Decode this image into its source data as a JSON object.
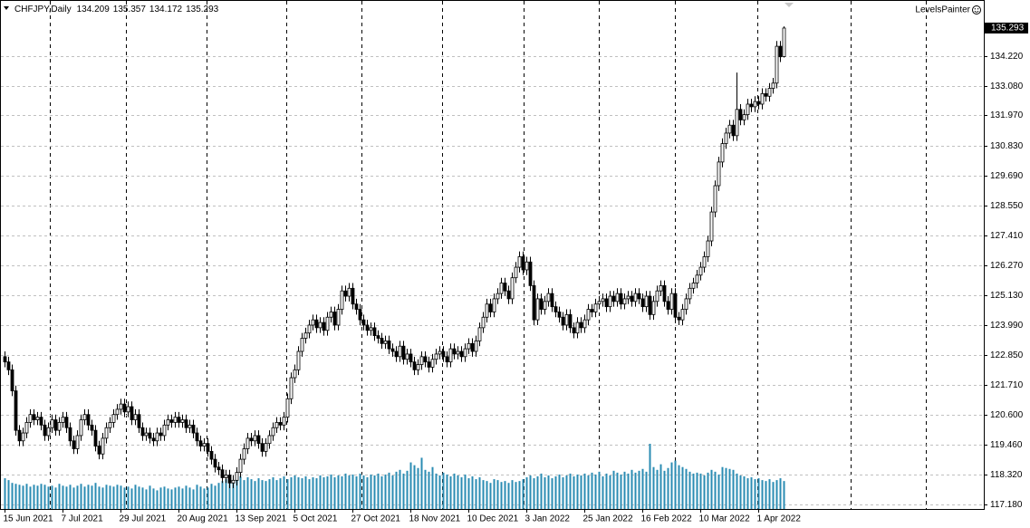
{
  "chart_data": {
    "type": "candlestick",
    "title": "CHFJPY,Daily",
    "indicator_label": "LevelsPainter",
    "color": "#000000",
    "volume_color": "#2b8cb3",
    "ylim": [
      117.01,
      136.29
    ],
    "yticks": [
      {
        "value": 134.22,
        "label": "134.220"
      },
      {
        "value": 133.08,
        "label": "133.080"
      },
      {
        "value": 131.97,
        "label": "131.970"
      },
      {
        "value": 130.83,
        "label": "130.830"
      },
      {
        "value": 129.69,
        "label": "129.690"
      },
      {
        "value": 128.55,
        "label": "128.550"
      },
      {
        "value": 127.41,
        "label": "127.410"
      },
      {
        "value": 126.27,
        "label": "126.270"
      },
      {
        "value": 125.13,
        "label": "125.130"
      },
      {
        "value": 123.99,
        "label": "123.990"
      },
      {
        "value": 122.85,
        "label": "122.850"
      },
      {
        "value": 121.71,
        "label": "121.710"
      },
      {
        "value": 120.6,
        "label": "120.600"
      },
      {
        "value": 119.46,
        "label": "119.460"
      },
      {
        "value": 118.32,
        "label": "118.320"
      },
      {
        "value": 117.18,
        "label": "117.180"
      }
    ],
    "grid": true,
    "categories": [
      "15 Jun 2021",
      null,
      null,
      null,
      null,
      null,
      null,
      null,
      null,
      null,
      null,
      null,
      null,
      null,
      null,
      null,
      "7 Jul 2021",
      null,
      null,
      null,
      null,
      null,
      null,
      null,
      null,
      null,
      null,
      null,
      null,
      null,
      null,
      null,
      "29 Jul 2021",
      null,
      null,
      null,
      null,
      null,
      null,
      null,
      null,
      null,
      null,
      null,
      null,
      null,
      null,
      null,
      "20 Aug 2021",
      null,
      null,
      null,
      null,
      null,
      null,
      null,
      null,
      null,
      null,
      null,
      null,
      null,
      null,
      null,
      "13 Sep 2021",
      null,
      null,
      null,
      null,
      null,
      null,
      null,
      null,
      null,
      null,
      null,
      null,
      null,
      null,
      null,
      "5 Oct 2021",
      null,
      null,
      null,
      null,
      null,
      null,
      null,
      null,
      null,
      null,
      null,
      null,
      null,
      null,
      null,
      "27 Oct 2021",
      null,
      null,
      null,
      null,
      null,
      null,
      null,
      null,
      null,
      null,
      null,
      null,
      null,
      null,
      null,
      "18 Nov 2021",
      null,
      null,
      null,
      null,
      null,
      null,
      null,
      null,
      null,
      null,
      null,
      null,
      null,
      null,
      null,
      "10 Dec 2021",
      null,
      null,
      null,
      null,
      null,
      null,
      null,
      null,
      null,
      null,
      null,
      null,
      null,
      null,
      null,
      "3 Jan 2022",
      null,
      null,
      null,
      null,
      null,
      null,
      null,
      null,
      null,
      null,
      null,
      null,
      null,
      null,
      null,
      "25 Jan 2022",
      null,
      null,
      null,
      null,
      null,
      null,
      null,
      null,
      null,
      null,
      null,
      null,
      null,
      null,
      null,
      "16 Feb 2022",
      null,
      null,
      null,
      null,
      null,
      null,
      null,
      null,
      null,
      null,
      null,
      null,
      null,
      null,
      null,
      "10 Mar 2022",
      null,
      null,
      null,
      null,
      null,
      null,
      null,
      null,
      null,
      null,
      null,
      null,
      null,
      null,
      null,
      "1 Apr 2022",
      null,
      null,
      null,
      null,
      null,
      null,
      null
    ],
    "open": [
      122.8,
      122.6,
      122.3,
      121.5,
      120.0,
      119.6,
      119.9,
      120.3,
      120.6,
      120.4,
      120.5,
      120.2,
      119.8,
      120.1,
      120.4,
      120.0,
      120.3,
      120.5,
      120.1,
      119.6,
      119.3,
      119.8,
      120.4,
      120.6,
      120.2,
      120.0,
      119.4,
      119.1,
      119.7,
      120.1,
      120.3,
      120.6,
      120.8,
      121.0,
      120.7,
      120.9,
      120.4,
      120.6,
      120.1,
      119.8,
      119.9,
      119.7,
      119.6,
      119.9,
      119.8,
      120.2,
      120.4,
      120.3,
      120.5,
      120.3,
      120.4,
      120.1,
      120.2,
      119.9,
      119.6,
      119.4,
      119.5,
      119.2,
      118.9,
      118.6,
      118.5,
      118.2,
      118.3,
      118.0,
      118.1,
      118.4,
      118.9,
      119.3,
      119.7,
      119.6,
      119.8,
      119.5,
      119.2,
      119.5,
      119.8,
      120.1,
      120.3,
      120.2,
      120.5,
      121.2,
      122.0,
      122.3,
      123.0,
      123.5,
      123.7,
      124.0,
      124.2,
      123.9,
      124.1,
      123.8,
      124.3,
      124.5,
      124.0,
      124.6,
      125.3,
      125.1,
      125.4,
      124.8,
      124.6,
      124.2,
      124.0,
      123.8,
      123.9,
      123.6,
      123.5,
      123.3,
      123.4,
      123.1,
      123.0,
      122.8,
      123.2,
      122.7,
      122.9,
      122.6,
      122.3,
      122.5,
      122.8,
      122.6,
      122.4,
      122.7,
      122.9,
      123.0,
      122.8,
      122.6,
      123.1,
      122.9,
      123.0,
      122.8,
      123.1,
      123.3,
      123.0,
      123.4,
      123.9,
      124.3,
      124.8,
      124.5,
      125.0,
      125.2,
      125.6,
      125.3,
      125.0,
      125.8,
      126.2,
      126.6,
      126.1,
      126.4,
      125.5,
      124.2,
      125.0,
      124.6,
      124.9,
      125.2,
      124.7,
      124.5,
      124.3,
      124.0,
      124.4,
      123.9,
      123.7,
      124.1,
      123.9,
      124.2,
      124.6,
      124.5,
      124.8,
      124.9,
      125.0,
      124.7,
      125.1,
      124.9,
      125.2,
      124.8,
      125.0,
      125.1,
      124.9,
      125.2,
      125.0,
      124.7,
      125.1,
      124.4,
      124.9,
      125.3,
      125.5,
      124.9,
      124.6,
      125.2,
      124.3,
      124.2,
      124.6,
      125.0,
      125.4,
      125.6,
      125.9,
      126.2,
      126.6,
      127.2,
      128.3,
      129.3,
      130.2,
      130.9,
      131.3,
      131.6,
      131.2,
      132.2,
      131.8,
      132.0,
      132.4,
      132.3,
      132.5,
      132.4,
      132.8,
      132.7,
      133.0,
      133.2,
      134.6,
      134.209
    ],
    "high": [
      123.0,
      122.8,
      122.5,
      121.7,
      120.2,
      120.1,
      120.5,
      120.8,
      120.8,
      120.7,
      120.7,
      120.4,
      120.3,
      120.6,
      120.6,
      120.5,
      120.7,
      120.7,
      120.3,
      119.8,
      120.0,
      120.6,
      120.8,
      120.8,
      120.4,
      120.2,
      119.6,
      119.9,
      120.3,
      120.5,
      120.8,
      121.0,
      121.2,
      121.2,
      121.1,
      121.1,
      120.8,
      120.8,
      120.3,
      120.1,
      120.1,
      119.9,
      120.1,
      120.1,
      120.4,
      120.6,
      120.6,
      120.7,
      120.7,
      120.6,
      120.6,
      120.4,
      120.4,
      120.1,
      119.8,
      119.7,
      119.7,
      119.4,
      119.1,
      118.8,
      118.7,
      118.5,
      118.5,
      118.3,
      118.6,
      119.1,
      119.5,
      119.9,
      119.9,
      120.0,
      120.0,
      119.7,
      119.7,
      120.0,
      120.3,
      120.5,
      120.5,
      120.7,
      121.4,
      122.2,
      122.5,
      123.2,
      123.7,
      123.9,
      124.2,
      124.4,
      124.4,
      124.3,
      124.3,
      124.5,
      124.7,
      124.7,
      124.8,
      125.5,
      125.5,
      125.6,
      125.6,
      125.0,
      124.8,
      124.4,
      124.2,
      124.1,
      124.1,
      123.8,
      123.7,
      123.6,
      123.6,
      123.3,
      123.2,
      123.4,
      123.4,
      123.1,
      123.1,
      122.8,
      122.7,
      123.0,
      123.0,
      122.8,
      122.9,
      123.1,
      123.2,
      123.2,
      123.0,
      123.3,
      123.3,
      123.2,
      123.2,
      123.3,
      123.5,
      123.5,
      123.6,
      124.1,
      124.5,
      125.0,
      125.0,
      125.2,
      125.4,
      125.8,
      125.8,
      125.5,
      126.0,
      126.4,
      126.8,
      126.8,
      126.6,
      126.6,
      125.7,
      125.2,
      125.2,
      125.1,
      125.4,
      125.4,
      124.9,
      124.7,
      124.5,
      124.6,
      124.6,
      124.1,
      124.3,
      124.3,
      124.4,
      124.8,
      124.8,
      125.0,
      125.1,
      125.2,
      125.2,
      125.3,
      125.3,
      125.4,
      125.4,
      125.2,
      125.3,
      125.3,
      125.4,
      125.4,
      125.2,
      125.3,
      125.3,
      125.1,
      125.5,
      125.7,
      125.7,
      125.1,
      125.4,
      125.4,
      124.5,
      124.8,
      125.2,
      125.6,
      125.8,
      126.1,
      126.4,
      126.8,
      127.4,
      128.5,
      129.5,
      130.4,
      131.1,
      131.5,
      131.8,
      131.8,
      133.6,
      132.4,
      132.2,
      132.6,
      132.6,
      132.7,
      132.7,
      133.0,
      133.0,
      133.2,
      133.4,
      134.8,
      134.8,
      135.357
    ],
    "low": [
      122.4,
      122.1,
      121.3,
      119.8,
      119.4,
      119.4,
      119.7,
      120.1,
      120.2,
      120.2,
      120.0,
      119.6,
      119.6,
      119.9,
      119.8,
      119.8,
      120.1,
      119.9,
      119.4,
      119.1,
      119.1,
      119.6,
      120.2,
      120.0,
      119.8,
      119.2,
      118.9,
      118.9,
      119.5,
      119.9,
      120.1,
      120.4,
      120.6,
      120.5,
      120.5,
      120.2,
      120.2,
      119.9,
      119.6,
      119.6,
      119.5,
      119.4,
      119.4,
      119.6,
      119.6,
      120.0,
      120.1,
      120.1,
      120.1,
      120.1,
      119.9,
      119.9,
      119.7,
      119.4,
      119.2,
      119.2,
      119.0,
      118.7,
      118.4,
      118.3,
      118.0,
      118.0,
      117.8,
      117.8,
      117.9,
      118.2,
      118.7,
      119.1,
      119.4,
      119.4,
      119.3,
      119.0,
      119.0,
      119.3,
      119.6,
      119.9,
      120.0,
      120.0,
      120.3,
      121.0,
      121.8,
      122.1,
      122.8,
      123.3,
      123.5,
      123.8,
      123.7,
      123.7,
      123.6,
      123.6,
      124.1,
      123.8,
      123.8,
      124.4,
      124.9,
      124.9,
      124.6,
      124.4,
      124.0,
      123.8,
      123.6,
      123.6,
      123.4,
      123.3,
      123.1,
      123.1,
      122.9,
      122.8,
      122.6,
      122.6,
      122.5,
      122.5,
      122.4,
      122.1,
      122.1,
      122.3,
      122.4,
      122.2,
      122.2,
      122.5,
      122.7,
      122.6,
      122.4,
      122.4,
      122.7,
      122.7,
      122.6,
      122.6,
      122.9,
      122.8,
      122.8,
      123.2,
      123.7,
      124.1,
      124.3,
      124.3,
      124.8,
      125.0,
      125.1,
      124.8,
      124.8,
      125.6,
      126.0,
      125.9,
      125.9,
      125.3,
      124.0,
      124.0,
      124.4,
      124.4,
      124.7,
      124.5,
      124.3,
      124.1,
      123.8,
      123.8,
      123.7,
      123.5,
      123.5,
      123.7,
      123.7,
      124.0,
      124.3,
      124.3,
      124.6,
      124.7,
      124.5,
      124.5,
      124.7,
      124.7,
      124.6,
      124.6,
      124.8,
      124.7,
      124.7,
      124.8,
      124.5,
      124.5,
      124.2,
      124.2,
      124.7,
      125.1,
      124.7,
      124.4,
      124.4,
      124.1,
      124.0,
      124.0,
      124.4,
      124.8,
      125.2,
      125.4,
      125.7,
      126.0,
      126.4,
      127.0,
      128.1,
      129.1,
      130.0,
      130.7,
      131.1,
      131.0,
      131.0,
      131.6,
      131.6,
      131.8,
      132.1,
      132.1,
      132.2,
      132.2,
      132.5,
      132.5,
      132.8,
      133.0,
      134.0,
      134.172
    ],
    "close": [
      122.6,
      122.3,
      121.5,
      120.0,
      119.6,
      119.9,
      120.3,
      120.6,
      120.4,
      120.5,
      120.2,
      119.8,
      120.1,
      120.4,
      120.0,
      120.3,
      120.5,
      120.1,
      119.6,
      119.3,
      119.8,
      120.4,
      120.6,
      120.2,
      120.0,
      119.4,
      119.1,
      119.7,
      120.1,
      120.3,
      120.6,
      120.8,
      121.0,
      120.7,
      120.9,
      120.4,
      120.6,
      120.1,
      119.8,
      119.9,
      119.7,
      119.6,
      119.9,
      119.8,
      120.2,
      120.4,
      120.3,
      120.5,
      120.3,
      120.4,
      120.1,
      120.2,
      119.9,
      119.6,
      119.4,
      119.5,
      119.2,
      118.9,
      118.6,
      118.5,
      118.2,
      118.3,
      118.0,
      118.1,
      118.4,
      118.9,
      119.3,
      119.7,
      119.6,
      119.8,
      119.5,
      119.2,
      119.5,
      119.8,
      120.1,
      120.3,
      120.2,
      120.5,
      121.2,
      122.0,
      122.3,
      123.0,
      123.5,
      123.7,
      124.0,
      124.2,
      123.9,
      124.1,
      123.8,
      124.3,
      124.5,
      124.0,
      124.6,
      125.3,
      125.1,
      125.4,
      124.8,
      124.6,
      124.2,
      124.0,
      123.8,
      123.9,
      123.6,
      123.5,
      123.3,
      123.4,
      123.1,
      123.0,
      122.8,
      123.2,
      122.7,
      122.9,
      122.6,
      122.3,
      122.5,
      122.8,
      122.6,
      122.4,
      122.7,
      122.9,
      123.0,
      122.8,
      122.6,
      123.1,
      122.9,
      123.0,
      122.8,
      123.1,
      123.3,
      123.0,
      123.4,
      123.9,
      124.3,
      124.8,
      124.5,
      125.0,
      125.2,
      125.6,
      125.3,
      125.0,
      125.8,
      126.2,
      126.6,
      126.1,
      126.4,
      125.5,
      124.2,
      125.0,
      124.6,
      124.9,
      125.2,
      124.7,
      124.5,
      124.3,
      124.0,
      124.4,
      123.9,
      123.7,
      124.1,
      123.9,
      124.2,
      124.6,
      124.5,
      124.8,
      124.9,
      125.0,
      124.7,
      125.1,
      124.9,
      125.2,
      124.8,
      125.0,
      125.1,
      124.9,
      125.2,
      125.0,
      124.7,
      125.1,
      124.4,
      124.9,
      125.3,
      125.5,
      124.9,
      124.6,
      125.2,
      124.3,
      124.2,
      124.6,
      125.0,
      125.4,
      125.6,
      125.9,
      126.2,
      126.6,
      127.2,
      128.3,
      129.3,
      130.2,
      130.9,
      131.3,
      131.6,
      131.2,
      132.2,
      131.8,
      132.0,
      132.4,
      132.3,
      132.5,
      132.4,
      132.8,
      132.7,
      133.0,
      133.2,
      134.6,
      134.2,
      135.293
    ],
    "volume": [
      33,
      31,
      28,
      27,
      26,
      25,
      27,
      24,
      26,
      25,
      27,
      26,
      24,
      25,
      23,
      27,
      25,
      24,
      26,
      23,
      25,
      27,
      24,
      26,
      25,
      28,
      24,
      23,
      26,
      25,
      24,
      26,
      25,
      23,
      24,
      22,
      26,
      24,
      23,
      21,
      25,
      22,
      20,
      23,
      24,
      22,
      21,
      23,
      24,
      22,
      25,
      23,
      21,
      26,
      24,
      22,
      23,
      27,
      25,
      28,
      30,
      32,
      29,
      31,
      33,
      35,
      31,
      34,
      32,
      30,
      33,
      31,
      30,
      32,
      34,
      31,
      33,
      35,
      32,
      34,
      36,
      34,
      33,
      35,
      32,
      34,
      33,
      36,
      34,
      35,
      37,
      34,
      36,
      35,
      38,
      36,
      37,
      35,
      38,
      36,
      34,
      37,
      36,
      38,
      35,
      37,
      39,
      36,
      40,
      42,
      38,
      41,
      50,
      47,
      44,
      55,
      42,
      40,
      45,
      38,
      36,
      39,
      37,
      35,
      38,
      36,
      34,
      37,
      33,
      35,
      32,
      34,
      31,
      30,
      28,
      32,
      31,
      29,
      30,
      28,
      31,
      29,
      30,
      32,
      34,
      36,
      33,
      35,
      38,
      34,
      36,
      33,
      35,
      37,
      34,
      36,
      38,
      35,
      37,
      36,
      38,
      36,
      39,
      37,
      40,
      35,
      38,
      36,
      41,
      39,
      37,
      40,
      38,
      42,
      39,
      41,
      43,
      40,
      70,
      45,
      42,
      48,
      41,
      44,
      50,
      52,
      47,
      45,
      43,
      40,
      38,
      39,
      38,
      36,
      39,
      42,
      40,
      37,
      45,
      44,
      43,
      42,
      38,
      36,
      35,
      33,
      34,
      32,
      33,
      31,
      30,
      32,
      29,
      31,
      33,
      30
    ]
  }
}
